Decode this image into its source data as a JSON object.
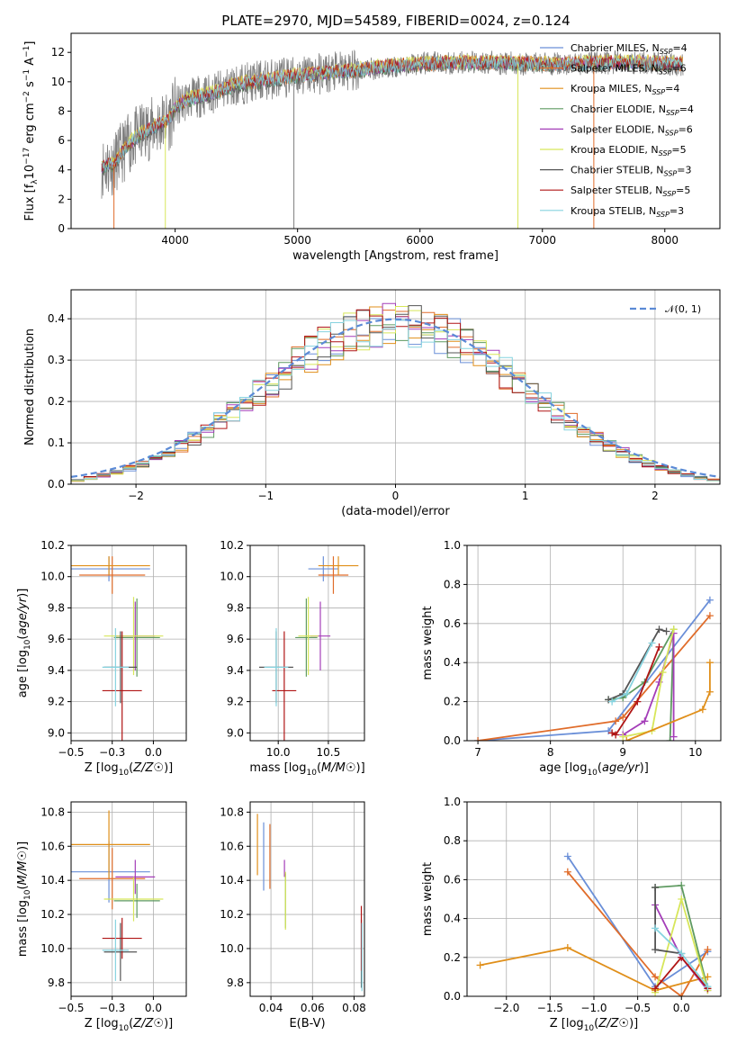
{
  "figure": {
    "title": "PLATE=2970, MJD=54589, FIBERID=0024, z=0.124"
  },
  "model_colors": {
    "Chabrier MILES": "#6a8fd8",
    "Salpeter MILES": "#e06c2a",
    "Kroupa MILES": "#e08f1a",
    "Chabrier ELODIE": "#5e9a60",
    "Salpeter ELODIE": "#a43db8",
    "Kroupa ELODIE": "#d7e65a",
    "Chabrier STELIB": "#555555",
    "Salpeter STELIB": "#b01515",
    "Kroupa STELIB": "#86d3df"
  },
  "chart_data": [
    {
      "id": "spectrum",
      "type": "line",
      "title": "PLATE=2970, MJD=54589, FIBERID=0024, z=0.124",
      "xlabel": "wavelength [Angstrom, rest frame]",
      "ylabel": "Flux [f_λ10^-17 erg cm^-2 s^-1 A^-1]",
      "xlim": [
        3150,
        8450
      ],
      "ylim": [
        0,
        13.3
      ],
      "xticks": [
        4000,
        5000,
        6000,
        7000,
        8000
      ],
      "yticks": [
        0,
        2,
        4,
        6,
        8,
        10,
        12
      ],
      "grid": false,
      "legend_position": "top-right",
      "legend": [
        {
          "model": "Chabrier MILES",
          "prefix": "Chabrier MILES, N",
          "sub": "SSP",
          "suffix": "=4"
        },
        {
          "model": "Salpeter MILES",
          "prefix": "Salpeter MILES, N",
          "sub": "SSP",
          "suffix": "=6"
        },
        {
          "model": "Kroupa MILES",
          "prefix": "Kroupa MILES, N",
          "sub": "SSP",
          "suffix": "=4"
        },
        {
          "model": "Chabrier ELODIE",
          "prefix": "Chabrier ELODIE, N",
          "sub": "SSP",
          "suffix": "=4"
        },
        {
          "model": "Salpeter ELODIE",
          "prefix": "Salpeter ELODIE, N",
          "sub": "SSP",
          "suffix": "=6"
        },
        {
          "model": "Kroupa ELODIE",
          "prefix": "Kroupa ELODIE, N",
          "sub": "SSP",
          "suffix": "=5"
        },
        {
          "model": "Chabrier STELIB",
          "prefix": "Chabrier STELIB, N",
          "sub": "SSP",
          "suffix": "=3"
        },
        {
          "model": "Salpeter STELIB",
          "prefix": "Salpeter STELIB, N",
          "sub": "SSP",
          "suffix": "=5"
        },
        {
          "model": "Kroupa STELIB",
          "prefix": "Kroupa STELIB, N",
          "sub": "SSP",
          "suffix": "=3"
        }
      ],
      "continuum": {
        "x": [
          3400,
          3500,
          3550,
          3650,
          3750,
          3850,
          3950,
          4000,
          4100,
          4300,
          4500,
          4800,
          5100,
          5400,
          5700,
          6000,
          6300,
          6600,
          6900,
          7200,
          7500,
          7800,
          8100
        ],
        "y": [
          4.2,
          4.4,
          5.0,
          6.0,
          6.6,
          7.0,
          7.4,
          8.2,
          8.8,
          9.2,
          9.8,
          10.2,
          10.5,
          10.7,
          11.0,
          11.2,
          11.3,
          11.3,
          11.2,
          11.2,
          11.3,
          11.3,
          11.2
        ]
      }
    },
    {
      "id": "residuals",
      "type": "line",
      "xlabel": "(data-model)/error",
      "ylabel": "Normed distribution",
      "xlim": [
        -2.5,
        2.5
      ],
      "ylim": [
        0,
        0.47
      ],
      "xticks": [
        -2,
        -1,
        0,
        1,
        2
      ],
      "yticks": [
        0.0,
        0.1,
        0.2,
        0.3,
        0.4
      ],
      "grid": true,
      "legend_position": "top-right",
      "gaussian_label": "𝒩(0, 1)",
      "gaussian_color": "#5b8ad6"
    },
    {
      "id": "age_vs_Z",
      "type": "scatter",
      "xlabel": "Z [log10(Z/Z☉)]",
      "ylabel": "age [log10(age/yr)]",
      "xlim": [
        -0.5,
        0.2
      ],
      "ylim": [
        8.95,
        10.2
      ],
      "xticks": [
        -0.5,
        -0.25,
        0.0
      ],
      "yticks": [
        9.0,
        9.2,
        9.4,
        9.6,
        9.8,
        10.0,
        10.2
      ],
      "grid": true,
      "points": [
        {
          "model": "Chabrier MILES",
          "x": -0.27,
          "xerr": 0.25,
          "y": 10.05,
          "yerr": 0.08
        },
        {
          "model": "Salpeter MILES",
          "x": -0.25,
          "xerr": 0.2,
          "y": 10.01,
          "yerr": 0.12
        },
        {
          "model": "Kroupa MILES",
          "x": -0.27,
          "xerr": 0.25,
          "y": 10.07,
          "yerr": 0.06
        },
        {
          "model": "Chabrier ELODIE",
          "x": -0.1,
          "xerr": 0.14,
          "y": 9.61,
          "yerr": 0.25
        },
        {
          "model": "Salpeter ELODIE",
          "x": -0.11,
          "xerr": 0.12,
          "y": 9.62,
          "yerr": 0.22
        },
        {
          "model": "Kroupa ELODIE",
          "x": -0.12,
          "xerr": 0.18,
          "y": 9.62,
          "yerr": 0.25
        },
        {
          "model": "Chabrier STELIB",
          "x": -0.2,
          "xerr": 0.1,
          "y": 9.42,
          "yerr": 0.23
        },
        {
          "model": "Salpeter STELIB",
          "x": -0.19,
          "xerr": 0.12,
          "y": 9.27,
          "yerr": 0.38
        },
        {
          "model": "Kroupa STELIB",
          "x": -0.23,
          "xerr": 0.08,
          "y": 9.42,
          "yerr": 0.25
        }
      ]
    },
    {
      "id": "age_vs_mass",
      "type": "scatter",
      "xlabel": "mass [log10(M/M☉)]",
      "xlim": [
        9.72,
        10.86
      ],
      "ylim": [
        8.95,
        10.2
      ],
      "xticks": [
        10.0,
        10.5
      ],
      "yticks": [
        9.0,
        9.2,
        9.4,
        9.6,
        9.8,
        10.0,
        10.2
      ],
      "grid": true,
      "points": [
        {
          "model": "Chabrier MILES",
          "x": 10.45,
          "xerr": 0.15,
          "y": 10.05,
          "yerr": 0.08
        },
        {
          "model": "Salpeter MILES",
          "x": 10.55,
          "xerr": 0.15,
          "y": 10.01,
          "yerr": 0.12
        },
        {
          "model": "Kroupa MILES",
          "x": 10.6,
          "xerr": 0.2,
          "y": 10.07,
          "yerr": 0.06
        },
        {
          "model": "Chabrier ELODIE",
          "x": 10.28,
          "xerr": 0.11,
          "y": 9.61,
          "yerr": 0.25
        },
        {
          "model": "Salpeter ELODIE",
          "x": 10.42,
          "xerr": 0.1,
          "y": 9.62,
          "yerr": 0.22
        },
        {
          "model": "Kroupa ELODIE",
          "x": 10.3,
          "xerr": 0.1,
          "y": 9.62,
          "yerr": 0.25
        },
        {
          "model": "Chabrier STELIB",
          "x": 9.98,
          "xerr": 0.17,
          "y": 9.42,
          "yerr": 0.23
        },
        {
          "model": "Salpeter STELIB",
          "x": 10.06,
          "xerr": 0.12,
          "y": 9.27,
          "yerr": 0.38
        },
        {
          "model": "Kroupa STELIB",
          "x": 9.98,
          "xerr": 0.12,
          "y": 9.42,
          "yerr": 0.25
        }
      ]
    },
    {
      "id": "weight_vs_age",
      "type": "line",
      "xlabel": "age [log10(age/yr)]",
      "ylabel": "mass weight",
      "xlim": [
        6.85,
        10.35
      ],
      "ylim": [
        0,
        1.0
      ],
      "xticks": [
        7,
        8,
        9,
        10
      ],
      "yticks": [
        0.0,
        0.2,
        0.4,
        0.6,
        0.8,
        1.0
      ],
      "grid": true,
      "series": [
        {
          "model": "Chabrier MILES",
          "x": [
            7.0,
            8.8,
            10.2
          ],
          "y": [
            0.0,
            0.05,
            0.72
          ]
        },
        {
          "model": "Salpeter MILES",
          "x": [
            7.0,
            8.9,
            9.0,
            10.2
          ],
          "y": [
            0.0,
            0.1,
            0.12,
            0.64
          ]
        },
        {
          "model": "Chabrier ELODIE",
          "x": [
            8.8,
            9.0,
            9.3,
            9.7,
            9.65
          ],
          "y": [
            0.21,
            0.22,
            0.3,
            0.57,
            0.0
          ]
        },
        {
          "model": "Salpeter ELODIE",
          "x": [
            9.0,
            9.3,
            9.5,
            9.7,
            9.7
          ],
          "y": [
            0.03,
            0.1,
            0.3,
            0.55,
            0.02
          ]
        },
        {
          "model": "Kroupa ELODIE",
          "x": [
            9.0,
            9.4,
            9.55,
            9.7
          ],
          "y": [
            0.02,
            0.05,
            0.35,
            0.57
          ]
        },
        {
          "model": "Chabrier STELIB",
          "x": [
            8.8,
            9.0,
            9.5,
            9.6
          ],
          "y": [
            0.21,
            0.24,
            0.57,
            0.56
          ]
        },
        {
          "model": "Salpeter STELIB",
          "x": [
            8.85,
            8.9,
            9.2,
            9.5
          ],
          "y": [
            0.04,
            0.03,
            0.2,
            0.48
          ]
        },
        {
          "model": "Kroupa STELIB",
          "x": [
            8.85,
            9.05,
            9.4
          ],
          "y": [
            0.2,
            0.24,
            0.5
          ]
        },
        {
          "model": "Kroupa MILES",
          "x": [
            9.05,
            10.1,
            10.2,
            10.2
          ],
          "y": [
            0.0,
            0.16,
            0.25,
            0.4
          ]
        }
      ]
    },
    {
      "id": "mass_vs_Z",
      "type": "scatter",
      "xlabel": "Z [log10(Z/Z☉)]",
      "ylabel": "mass [log10(M/M☉)]",
      "xlim": [
        -0.5,
        0.2
      ],
      "ylim": [
        9.72,
        10.86
      ],
      "xticks": [
        -0.5,
        -0.25,
        0.0
      ],
      "yticks": [
        9.8,
        10.0,
        10.2,
        10.4,
        10.6,
        10.8
      ],
      "grid": true,
      "points": [
        {
          "model": "Chabrier MILES",
          "x": -0.27,
          "xerr": 0.25,
          "y": 10.45,
          "yerr": 0.18
        },
        {
          "model": "Salpeter MILES",
          "x": -0.25,
          "xerr": 0.2,
          "y": 10.41,
          "yerr": 0.18
        },
        {
          "model": "Kroupa MILES",
          "x": -0.27,
          "xerr": 0.25,
          "y": 10.61,
          "yerr": 0.2
        },
        {
          "model": "Chabrier ELODIE",
          "x": -0.1,
          "xerr": 0.14,
          "y": 10.28,
          "yerr": 0.1
        },
        {
          "model": "Salpeter ELODIE",
          "x": -0.11,
          "xerr": 0.12,
          "y": 10.42,
          "yerr": 0.1
        },
        {
          "model": "Kroupa ELODIE",
          "x": -0.12,
          "xerr": 0.18,
          "y": 10.29,
          "yerr": 0.13
        },
        {
          "model": "Chabrier STELIB",
          "x": -0.2,
          "xerr": 0.1,
          "y": 9.98,
          "yerr": 0.17
        },
        {
          "model": "Salpeter STELIB",
          "x": -0.19,
          "xerr": 0.12,
          "y": 10.06,
          "yerr": 0.12
        },
        {
          "model": "Kroupa STELIB",
          "x": -0.23,
          "xerr": 0.08,
          "y": 9.99,
          "yerr": 0.18
        }
      ]
    },
    {
      "id": "mass_vs_ebv",
      "type": "scatter",
      "xlabel": "E(B-V)",
      "xlim": [
        0.03,
        0.085
      ],
      "ylim": [
        9.72,
        10.86
      ],
      "xticks": [
        0.04,
        0.06,
        0.08
      ],
      "yticks": [
        9.8,
        10.0,
        10.2,
        10.4,
        10.6,
        10.8
      ],
      "grid": true,
      "points": [
        {
          "model": "Chabrier MILES",
          "x": 0.0365,
          "xerr": 0,
          "y": 10.54,
          "yerr": 0.2
        },
        {
          "model": "Salpeter MILES",
          "x": 0.0395,
          "xerr": 0,
          "y": 10.54,
          "yerr": 0.19
        },
        {
          "model": "Kroupa MILES",
          "x": 0.0335,
          "xerr": 0,
          "y": 10.61,
          "yerr": 0.18
        },
        {
          "model": "Chabrier ELODIE",
          "x": 0.047,
          "xerr": 0,
          "y": 10.28,
          "yerr": 0.16
        },
        {
          "model": "Salpeter ELODIE",
          "x": 0.0465,
          "xerr": 0,
          "y": 10.47,
          "yerr": 0.05
        },
        {
          "model": "Kroupa ELODIE",
          "x": 0.047,
          "xerr": 0,
          "y": 10.28,
          "yerr": 0.17
        },
        {
          "model": "Chabrier STELIB",
          "x": 0.0835,
          "xerr": 0,
          "y": 9.97,
          "yerr": 0.2
        },
        {
          "model": "Salpeter STELIB",
          "x": 0.0835,
          "xerr": 0,
          "y": 10.06,
          "yerr": 0.19
        },
        {
          "model": "Kroupa STELIB",
          "x": 0.0838,
          "xerr": 0,
          "y": 9.95,
          "yerr": 0.2
        }
      ]
    },
    {
      "id": "weight_vs_Z",
      "type": "line",
      "xlabel": "Z [log10(Z/Z☉)]",
      "ylabel": "mass weight",
      "xlim": [
        -2.45,
        0.45
      ],
      "ylim": [
        0,
        1.0
      ],
      "xticks": [
        -2.0,
        -1.5,
        -1.0,
        -0.5,
        0.0
      ],
      "yticks": [
        0.0,
        0.2,
        0.4,
        0.6,
        0.8,
        1.0
      ],
      "grid": true,
      "series": [
        {
          "model": "Chabrier MILES",
          "x": [
            -1.3,
            -0.3,
            0.3
          ],
          "y": [
            0.72,
            0.05,
            0.23
          ]
        },
        {
          "model": "Salpeter MILES",
          "x": [
            -1.3,
            -0.3,
            0.0,
            0.3
          ],
          "y": [
            0.64,
            0.1,
            0.0,
            0.24
          ]
        },
        {
          "model": "Kroupa MILES",
          "x": [
            -2.3,
            -1.3,
            -0.3,
            0.3
          ],
          "y": [
            0.16,
            0.25,
            0.03,
            0.1
          ]
        },
        {
          "model": "Chabrier ELODIE",
          "x": [
            -0.3,
            0.0,
            0.3
          ],
          "y": [
            0.56,
            0.57,
            0.04
          ]
        },
        {
          "model": "Salpeter ELODIE",
          "x": [
            -0.3,
            0.0,
            0.3
          ],
          "y": [
            0.47,
            0.2,
            0.03
          ]
        },
        {
          "model": "Kroupa ELODIE",
          "x": [
            -0.3,
            0.0,
            0.3
          ],
          "y": [
            0.02,
            0.5,
            0.03
          ]
        },
        {
          "model": "Chabrier STELIB",
          "x": [
            -0.3,
            -0.3,
            0.0
          ],
          "y": [
            0.56,
            0.24,
            0.22
          ]
        },
        {
          "model": "Salpeter STELIB",
          "x": [
            -0.3,
            0.0,
            0.3
          ],
          "y": [
            0.04,
            0.2,
            0.04
          ]
        },
        {
          "model": "Kroupa STELIB",
          "x": [
            -0.3,
            0.0,
            0.3
          ],
          "y": [
            0.35,
            0.22,
            0.05
          ]
        }
      ]
    }
  ]
}
